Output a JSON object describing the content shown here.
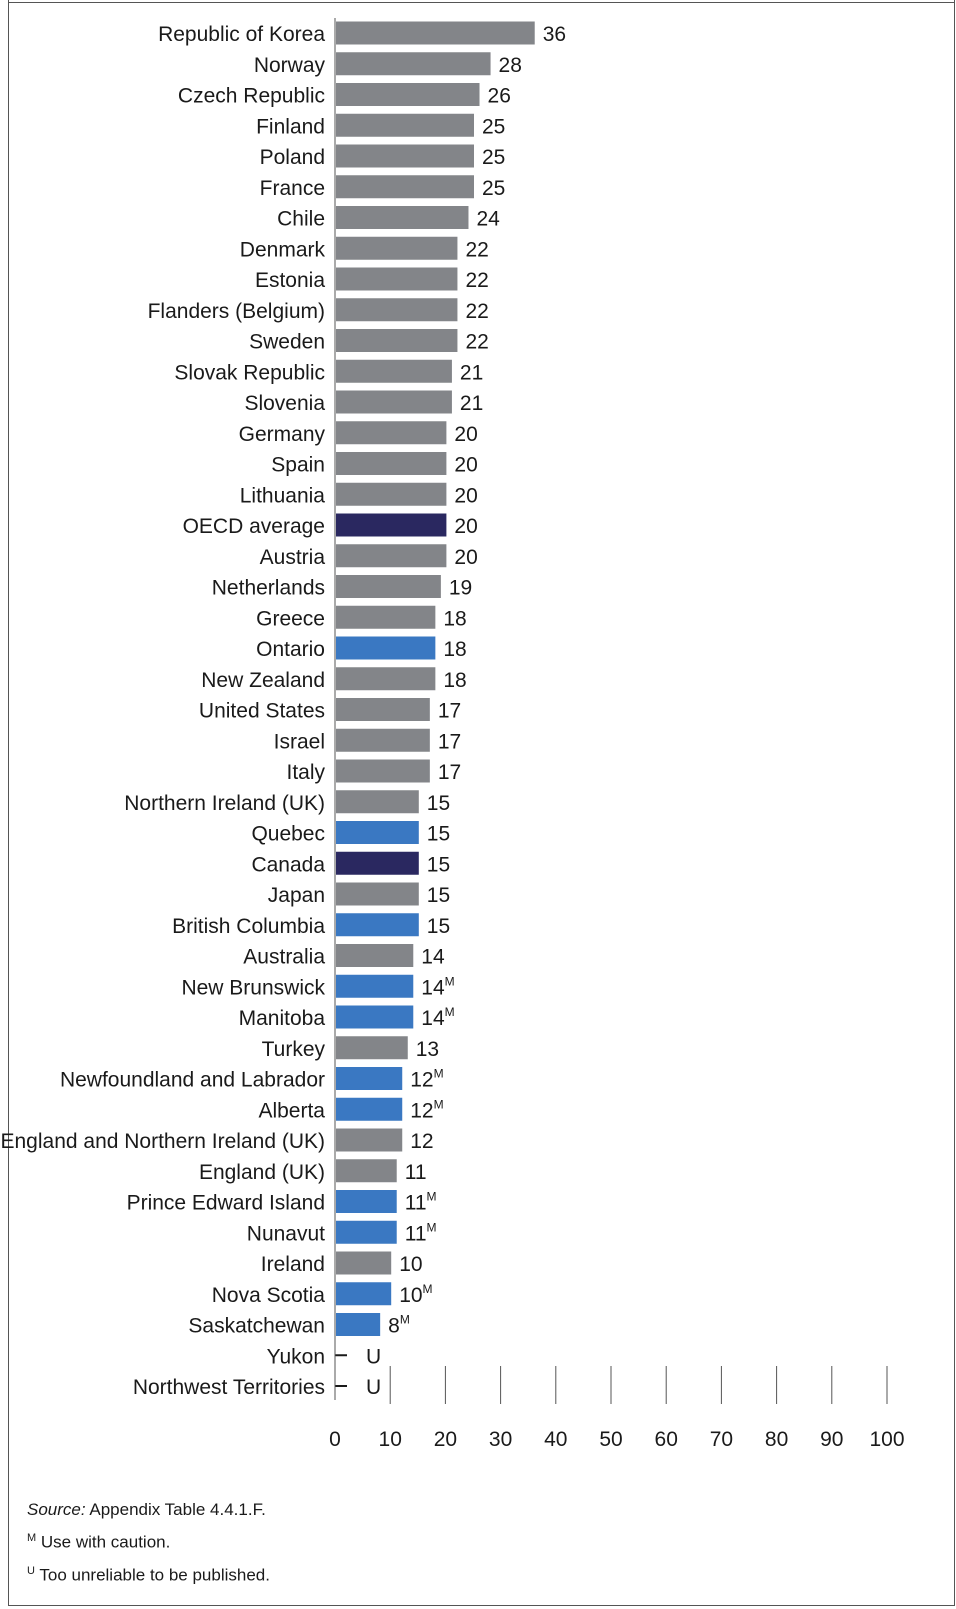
{
  "chart_data": {
    "type": "bar",
    "orientation": "horizontal",
    "xlim": [
      0,
      100
    ],
    "xticks": [
      "0",
      "10",
      "20",
      "30",
      "40",
      "50",
      "60",
      "70",
      "80",
      "90",
      "100"
    ],
    "colors": {
      "default": "#838589",
      "average": "#2a2860",
      "province": "#3a78c2"
    },
    "bars": [
      {
        "label": "Republic of Korea",
        "value": 36,
        "text": "36",
        "flag": "",
        "color": "default"
      },
      {
        "label": "Norway",
        "value": 28,
        "text": "28",
        "flag": "",
        "color": "default"
      },
      {
        "label": "Czech Republic",
        "value": 26,
        "text": "26",
        "flag": "",
        "color": "default"
      },
      {
        "label": "Finland",
        "value": 25,
        "text": "25",
        "flag": "",
        "color": "default"
      },
      {
        "label": "Poland",
        "value": 25,
        "text": "25",
        "flag": "",
        "color": "default"
      },
      {
        "label": "France",
        "value": 25,
        "text": "25",
        "flag": "",
        "color": "default"
      },
      {
        "label": "Chile",
        "value": 24,
        "text": "24",
        "flag": "",
        "color": "default"
      },
      {
        "label": "Denmark",
        "value": 22,
        "text": "22",
        "flag": "",
        "color": "default"
      },
      {
        "label": "Estonia",
        "value": 22,
        "text": "22",
        "flag": "",
        "color": "default"
      },
      {
        "label": "Flanders (Belgium)",
        "value": 22,
        "text": "22",
        "flag": "",
        "color": "default"
      },
      {
        "label": "Sweden",
        "value": 22,
        "text": "22",
        "flag": "",
        "color": "default"
      },
      {
        "label": "Slovak Republic",
        "value": 21,
        "text": "21",
        "flag": "",
        "color": "default"
      },
      {
        "label": "Slovenia",
        "value": 21,
        "text": "21",
        "flag": "",
        "color": "default"
      },
      {
        "label": "Germany",
        "value": 20,
        "text": "20",
        "flag": "",
        "color": "default"
      },
      {
        "label": "Spain",
        "value": 20,
        "text": "20",
        "flag": "",
        "color": "default"
      },
      {
        "label": "Lithuania",
        "value": 20,
        "text": "20",
        "flag": "",
        "color": "default"
      },
      {
        "label": "OECD average",
        "value": 20,
        "text": "20",
        "flag": "",
        "color": "average"
      },
      {
        "label": "Austria",
        "value": 20,
        "text": "20",
        "flag": "",
        "color": "default"
      },
      {
        "label": "Netherlands",
        "value": 19,
        "text": "19",
        "flag": "",
        "color": "default"
      },
      {
        "label": "Greece",
        "value": 18,
        "text": "18",
        "flag": "",
        "color": "default"
      },
      {
        "label": "Ontario",
        "value": 18,
        "text": "18",
        "flag": "",
        "color": "province"
      },
      {
        "label": "New Zealand",
        "value": 18,
        "text": "18",
        "flag": "",
        "color": "default"
      },
      {
        "label": "United States",
        "value": 17,
        "text": "17",
        "flag": "",
        "color": "default"
      },
      {
        "label": "Israel",
        "value": 17,
        "text": "17",
        "flag": "",
        "color": "default"
      },
      {
        "label": "Italy",
        "value": 17,
        "text": "17",
        "flag": "",
        "color": "default"
      },
      {
        "label": "Northern Ireland (UK)",
        "value": 15,
        "text": "15",
        "flag": "",
        "color": "default"
      },
      {
        "label": "Quebec",
        "value": 15,
        "text": "15",
        "flag": "",
        "color": "province"
      },
      {
        "label": "Canada",
        "value": 15,
        "text": "15",
        "flag": "",
        "color": "average"
      },
      {
        "label": "Japan",
        "value": 15,
        "text": "15",
        "flag": "",
        "color": "default"
      },
      {
        "label": "British Columbia",
        "value": 15,
        "text": "15",
        "flag": "",
        "color": "province"
      },
      {
        "label": "Australia",
        "value": 14,
        "text": "14",
        "flag": "",
        "color": "default"
      },
      {
        "label": "New Brunswick",
        "value": 14,
        "text": "14",
        "flag": "M",
        "color": "province"
      },
      {
        "label": "Manitoba",
        "value": 14,
        "text": "14",
        "flag": "M",
        "color": "province"
      },
      {
        "label": "Turkey",
        "value": 13,
        "text": "13",
        "flag": "",
        "color": "default"
      },
      {
        "label": "Newfoundland and Labrador",
        "value": 12,
        "text": "12",
        "flag": "M",
        "color": "province"
      },
      {
        "label": "Alberta",
        "value": 12,
        "text": "12",
        "flag": "M",
        "color": "province"
      },
      {
        "label": "England and Northern Ireland (UK)",
        "value": 12,
        "text": "12",
        "flag": "",
        "color": "default"
      },
      {
        "label": "England (UK)",
        "value": 11,
        "text": "11",
        "flag": "",
        "color": "default"
      },
      {
        "label": "Prince Edward Island",
        "value": 11,
        "text": "11",
        "flag": "M",
        "color": "province"
      },
      {
        "label": "Nunavut",
        "value": 11,
        "text": "11",
        "flag": "M",
        "color": "province"
      },
      {
        "label": "Ireland",
        "value": 10,
        "text": "10",
        "flag": "",
        "color": "default"
      },
      {
        "label": "Nova Scotia",
        "value": 10,
        "text": "10",
        "flag": "M",
        "color": "province"
      },
      {
        "label": "Saskatchewan",
        "value": 8,
        "text": "8",
        "flag": "M",
        "color": "province"
      },
      {
        "label": "Yukon",
        "value": null,
        "text": "U",
        "flag": "",
        "color": "default"
      },
      {
        "label": "Northwest Territories",
        "value": null,
        "text": "U",
        "flag": "",
        "color": "default"
      }
    ]
  },
  "notes": {
    "source_label": "Source:",
    "source_text": " Appendix Table 4.4.1.F.",
    "m_mark": "M",
    "m_text": " Use with caution.",
    "u_mark": "U",
    "u_text": " Too unreliable to be published."
  }
}
